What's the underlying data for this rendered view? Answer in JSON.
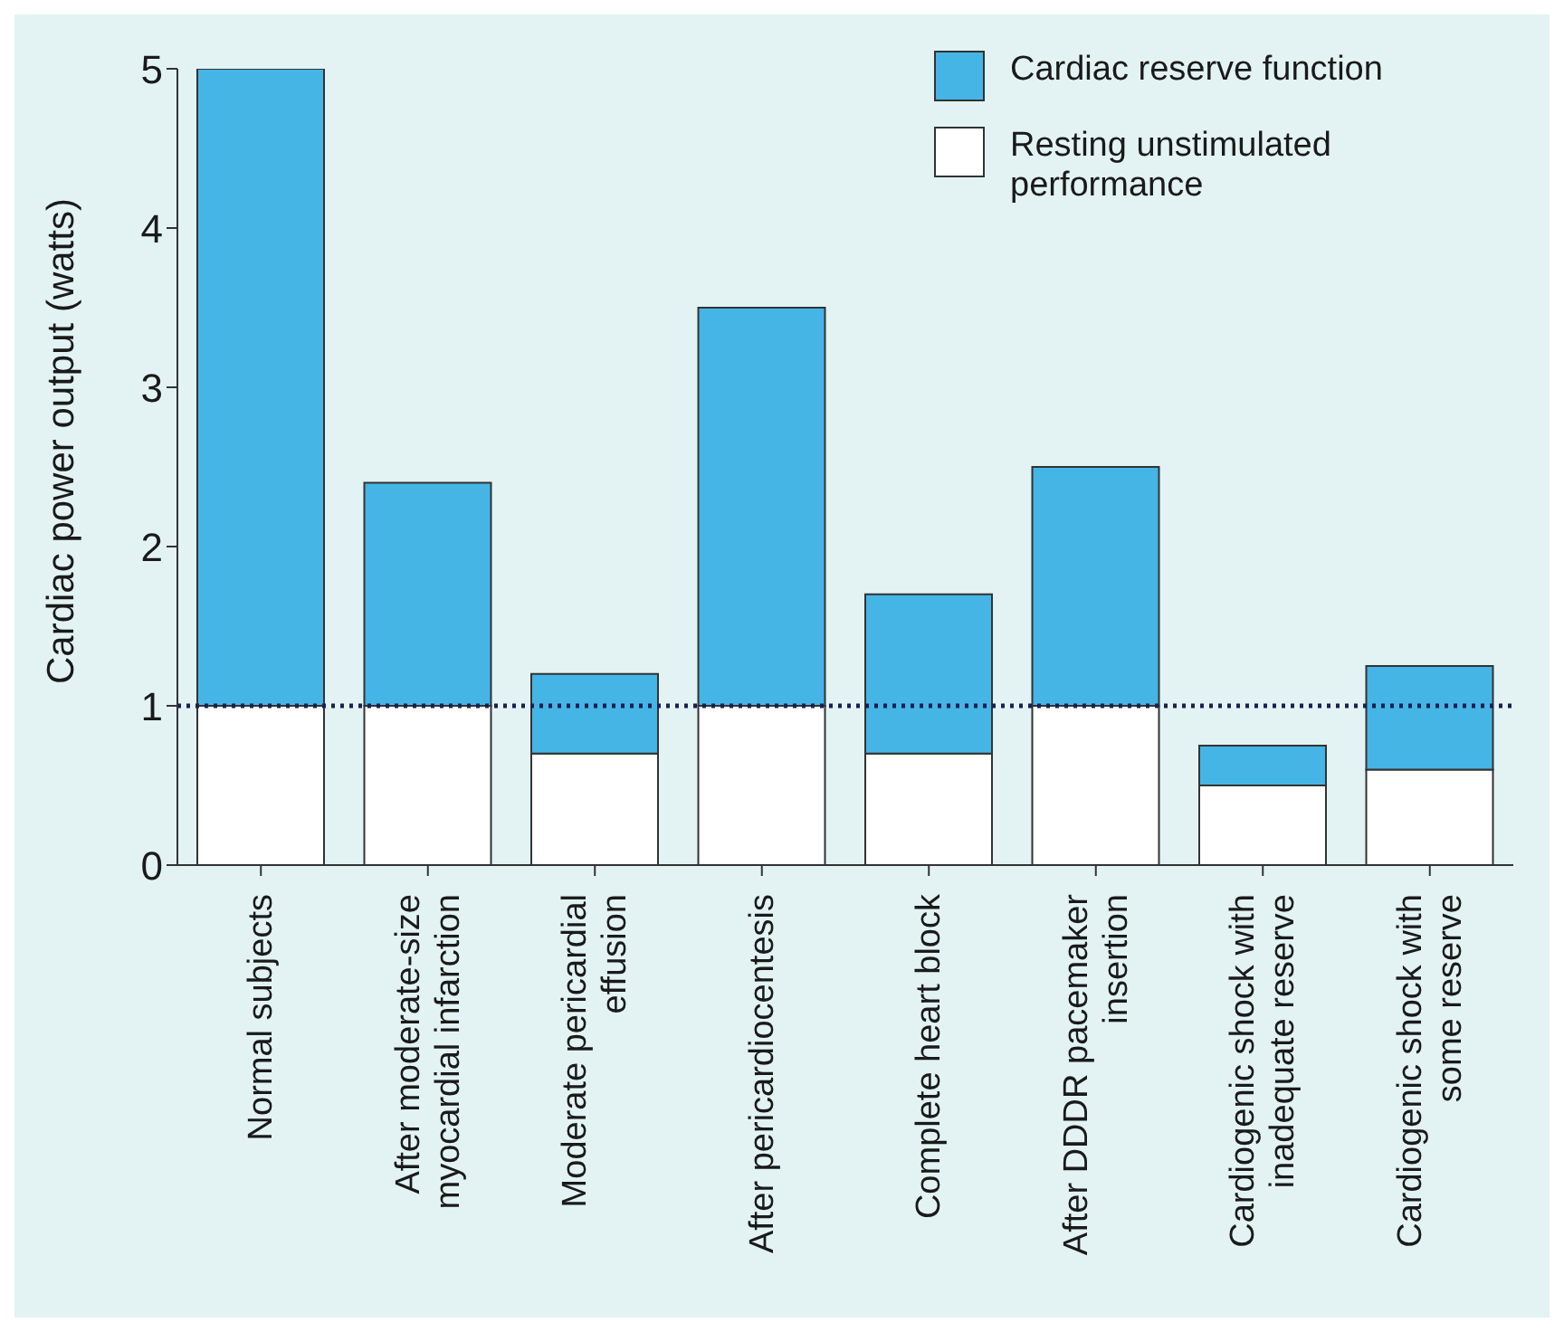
{
  "chart_data": {
    "type": "bar",
    "stacked": true,
    "ylabel": "Cardiac power output (watts)",
    "categories": [
      "Normal subjects",
      "After moderate-size myocardial infarction",
      "Moderate pericardial effusion",
      "After pericardiocentesis",
      "Complete heart block",
      "After DDDR pacemaker insertion",
      "Cardiogenic shock with inadequate reserve",
      "Cardiogenic shock with some reserve"
    ],
    "series": [
      {
        "name": "Resting unstimulated performance",
        "color": "#ffffff",
        "values": [
          1,
          1,
          0.7,
          1,
          0.7,
          1,
          0.5,
          0.6
        ]
      },
      {
        "name": "Cardiac reserve function",
        "color": "#45b5e6",
        "values": [
          4,
          1.4,
          0.5,
          2.5,
          1.0,
          1.5,
          0.25,
          0.65
        ]
      }
    ],
    "ylim": [
      0,
      5
    ],
    "yticks": [
      0,
      1,
      2,
      3,
      4,
      5
    ],
    "grid": false,
    "legend": "top right",
    "ref_lines": [
      {
        "axis": "y",
        "value": 1,
        "color": "#1a2050",
        "line_style": "dotted"
      }
    ]
  }
}
